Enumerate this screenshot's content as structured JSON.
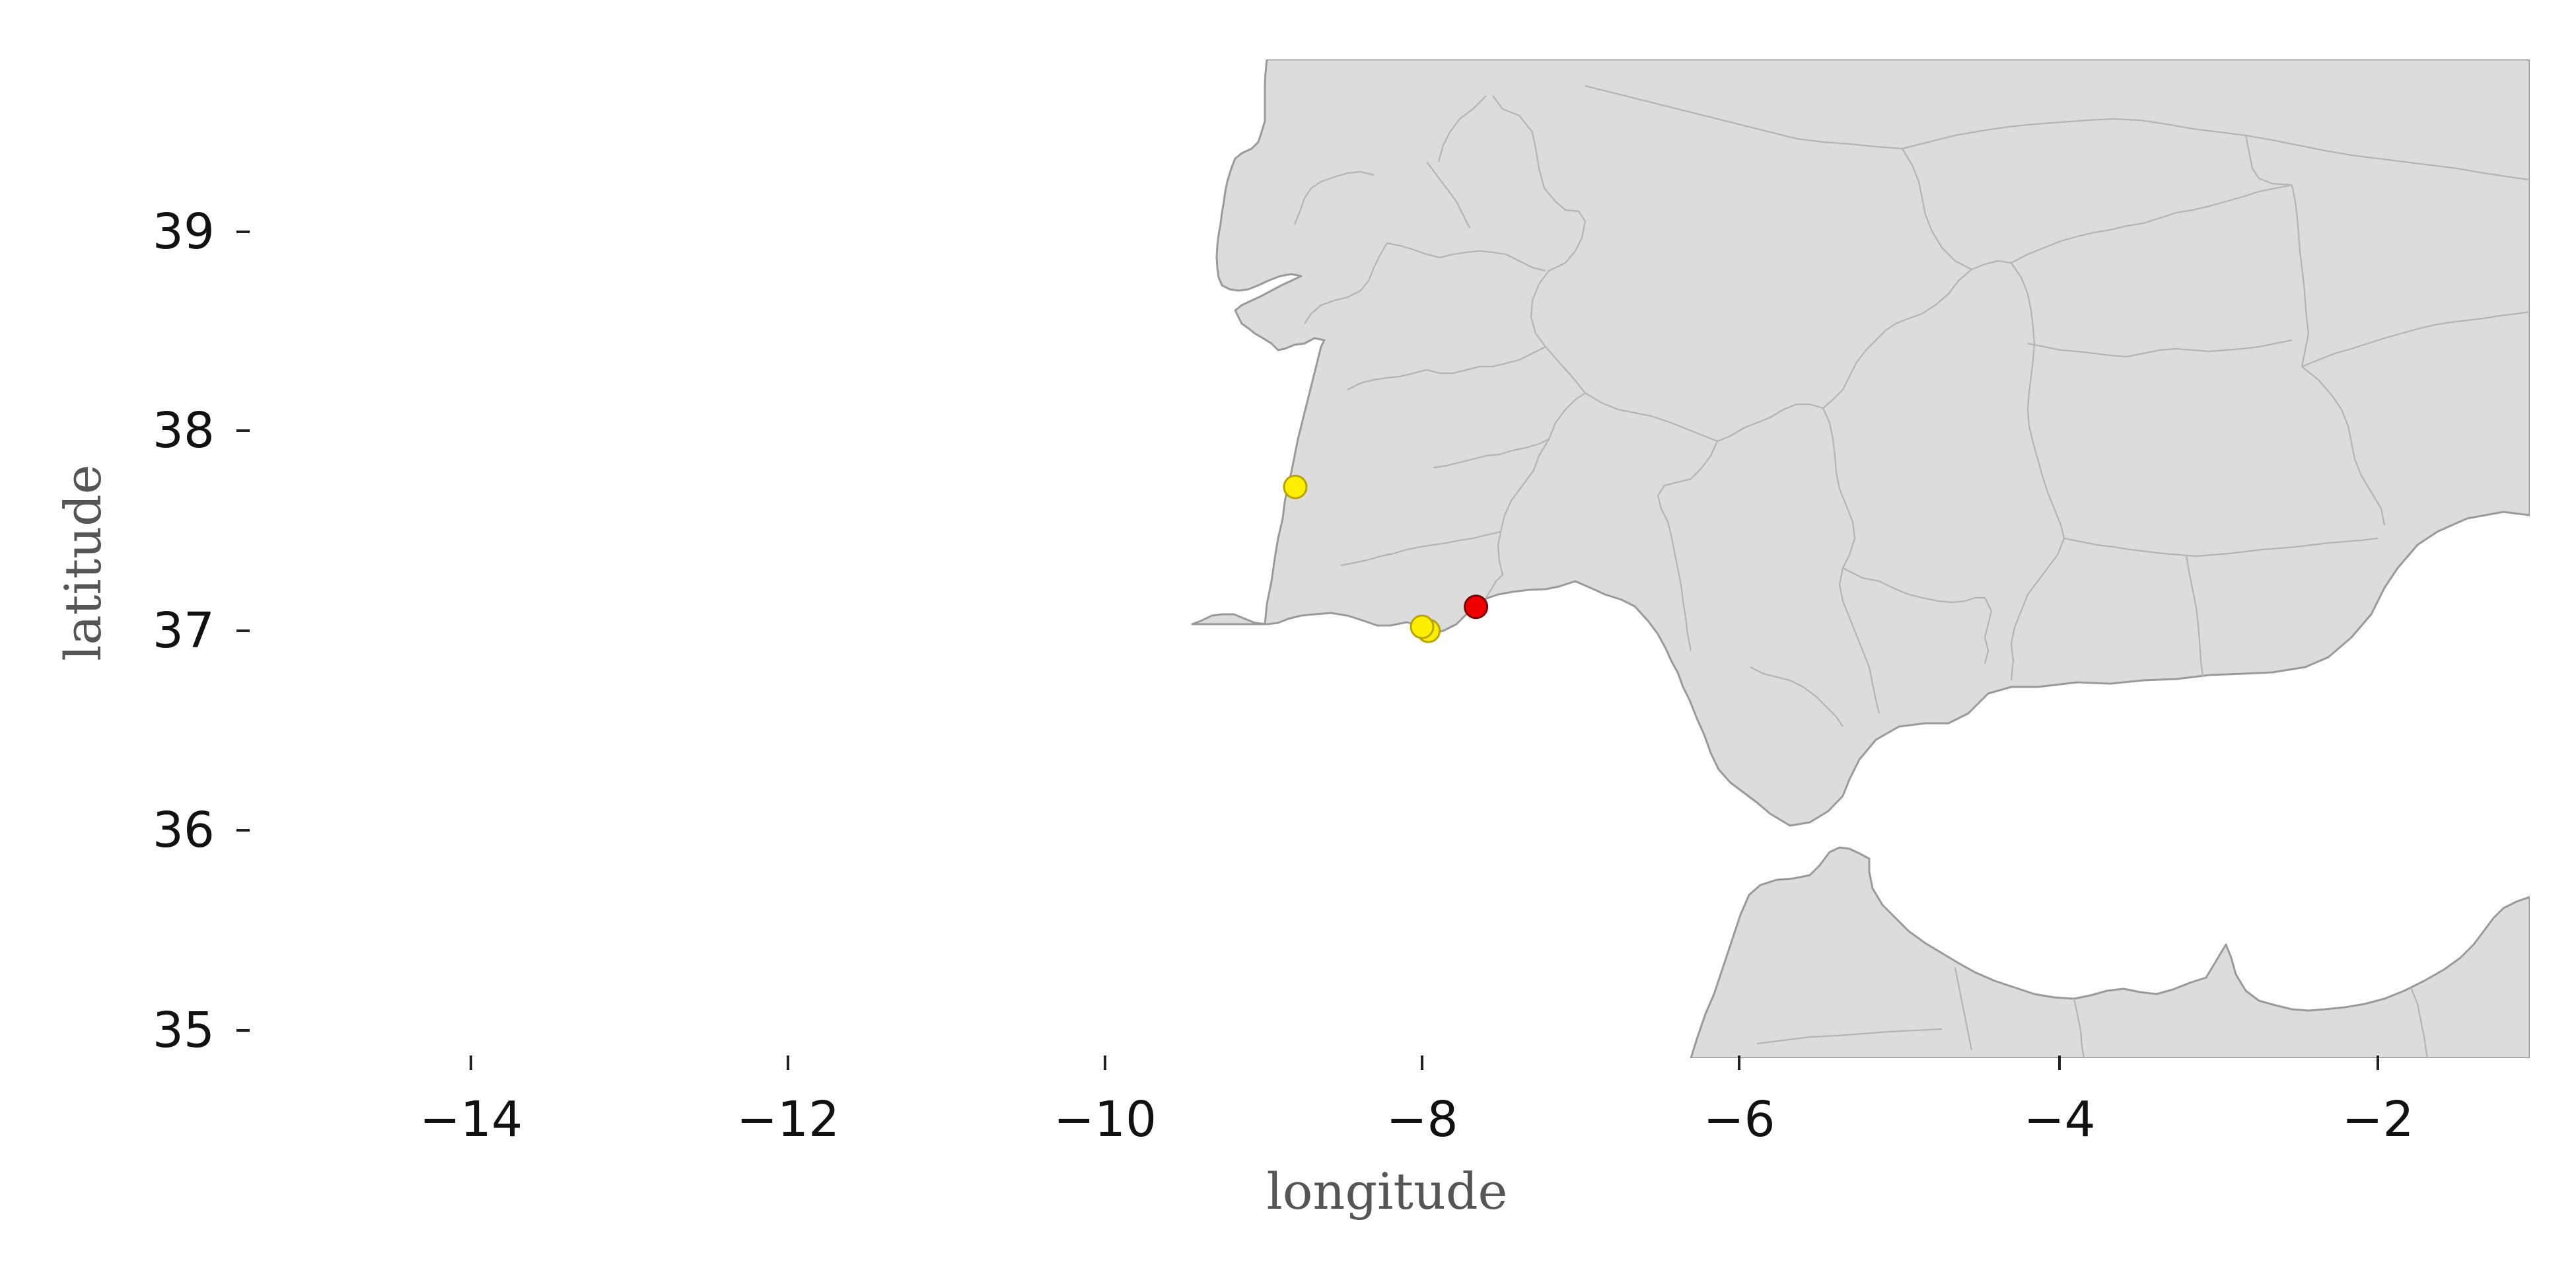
{
  "chart_data": {
    "type": "scatter",
    "title": "",
    "xlabel": "longitude",
    "ylabel": "latitude",
    "xlim": [
      -15.4,
      -1.1
    ],
    "ylim": [
      34.85,
      39.85
    ],
    "xticks": [
      -14,
      -12,
      -10,
      -8,
      -6,
      -4,
      -2
    ],
    "xtick_labels": [
      "−14",
      "−12",
      "−10",
      "−8",
      "−6",
      "−4",
      "−2"
    ],
    "yticks": [
      35,
      36,
      37,
      38,
      39
    ],
    "ytick_labels": [
      "35",
      "36",
      "37",
      "38",
      "39"
    ],
    "grid": false,
    "legend": "none",
    "basemap": "Iberian Peninsula and northern Morocco with regional borders",
    "points": [
      {
        "lon": -8.8,
        "lat": 37.72,
        "color": "#ffee00"
      },
      {
        "lon": -7.96,
        "lat": 37.0,
        "color": "#ffee00"
      },
      {
        "lon": -8.0,
        "lat": 37.02,
        "color": "#ffee00"
      },
      {
        "lon": -7.66,
        "lat": 37.12,
        "color": "#ee0000"
      }
    ],
    "colors": {
      "land": "#dcdcdc",
      "coastline": "#9a9a9a",
      "borders": "#b4b4b4",
      "point_yellow": "#ffee00",
      "point_red": "#ee0000"
    }
  }
}
